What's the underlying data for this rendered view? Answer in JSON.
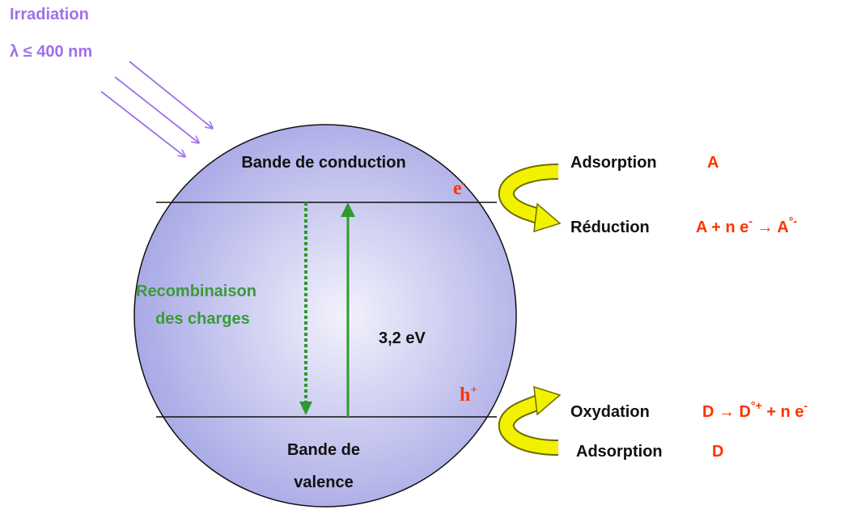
{
  "irradiation": {
    "title": "Irradiation",
    "wavelength": "λ ≤ 400 nm"
  },
  "particle": {
    "conduction_band": "Bande de conduction",
    "valence_band": [
      "Bande de",
      "valence"
    ],
    "electron": {
      "base": "e",
      "sup": "-"
    },
    "hole": {
      "base": "h",
      "sup": "+"
    },
    "recombination": [
      "Recombinaison",
      "des charges"
    ],
    "gap": "3,2 eV"
  },
  "reactions": {
    "top": {
      "adsorption": {
        "label": "Adsorption",
        "species": "A"
      },
      "reduction": {
        "label": "Réduction",
        "equation": [
          {
            "text": "A + n e"
          },
          {
            "text": "-",
            "sup": true
          },
          {
            "text": " → A"
          },
          {
            "text": "°-",
            "sup": true
          }
        ]
      }
    },
    "bottom": {
      "oxidation": {
        "label": "Oxydation",
        "equation": [
          {
            "text": "D → D"
          },
          {
            "text": "°+",
            "sup": true
          },
          {
            "text": " + n e"
          },
          {
            "text": "-",
            "sup": true
          }
        ]
      },
      "adsorption": {
        "label": "Adsorption",
        "species": "D"
      }
    }
  }
}
